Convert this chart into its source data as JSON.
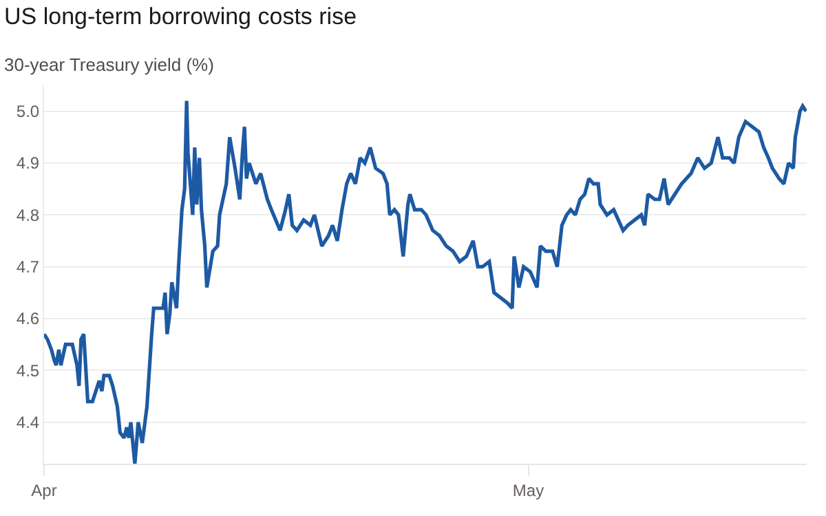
{
  "chart_data": {
    "type": "line",
    "title": "US long-term borrowing costs rise",
    "subtitle": "30-year Treasury yield (%)",
    "x": [
      "--04-01T00:00",
      "--04-01T05:00",
      "--04-01T11:00",
      "--04-01T15:00",
      "--04-01T18:00",
      "--04-01T22:00",
      "--04-02T01:00",
      "--04-02T08:00",
      "--04-02T18:00",
      "--04-03T01:00",
      "--04-03T04:00",
      "--04-03T07:00",
      "--04-03T11:00",
      "--04-03T17:00",
      "--04-04T00:00",
      "--04-04T10:00",
      "--04-04T14:00",
      "--04-04T17:00",
      "--04-05T01:00",
      "--04-05T06:00",
      "--04-05T13:00",
      "--04-05T17:00",
      "--04-05T23:00",
      "--04-06T03:00",
      "--04-06T06:00",
      "--04-06T09:00",
      "--04-06T15:00",
      "--04-06T20:00",
      "--04-07T02:00",
      "--04-07T06:00",
      "--04-07T09:00",
      "--04-07T12:00",
      "--04-07T16:00",
      "--04-07T19:00",
      "--04-08T02:00",
      "--04-08T09:00",
      "--04-08T12:00",
      "--04-08T15:00",
      "--04-08T19:00",
      "--04-08T22:00",
      "--04-09T05:00",
      "--04-09T08:00",
      "--04-09T13:00",
      "--04-09T17:00",
      "--04-09T20:00",
      "--04-09T22:00",
      "--04-10T05:00",
      "--04-10T08:00",
      "--04-10T11:00",
      "--04-10T15:00",
      "--04-10T18:00",
      "--04-10T23:00",
      "--04-11T02:00",
      "--04-11T11:00",
      "--04-11T18:00",
      "--04-11T21:00",
      "--04-12T07:00",
      "--04-12T12:00",
      "--04-12T20:00",
      "--04-13T03:00",
      "--04-13T07:00",
      "--04-13T10:00",
      "--04-13T13:00",
      "--04-13T17:00",
      "--04-14T03:00",
      "--04-14T10:00",
      "--04-14T20:00",
      "--04-15T02:00",
      "--04-15T15:00",
      "--04-15T23:00",
      "--04-16T04:00",
      "--04-16T09:00",
      "--04-16T16:00",
      "--04-17T02:00",
      "--04-17T12:00",
      "--04-17T18:00",
      "--04-18T05:00",
      "--04-18T15:00",
      "--04-18T21:00",
      "--04-19T04:00",
      "--04-19T11:00",
      "--04-19T18:00",
      "--04-20T00:00",
      "--04-20T07:00",
      "--04-20T14:00",
      "--04-20T21:00",
      "--04-21T05:00",
      "--04-21T13:00",
      "--04-22T00:00",
      "--04-22T06:00",
      "--04-22T10:00",
      "--04-22T17:00",
      "--04-22T23:00",
      "--04-23T06:00",
      "--04-23T13:00",
      "--04-23T16:00",
      "--04-23T23:00",
      "--04-24T09:00",
      "--04-24T16:00",
      "--04-25T02:00",
      "--04-25T12:00",
      "--04-25T22:00",
      "--04-26T08:00",
      "--04-26T18:00",
      "--04-27T04:00",
      "--04-27T14:00",
      "--04-27T21:00",
      "--04-28T04:00",
      "--04-28T14:00",
      "--04-28T21:00",
      "--04-29T07:00",
      "--04-29T17:00",
      "--04-30T00:00",
      "--04-30T03:00",
      "--04-30T10:00",
      "--04-30T17:00",
      "--05-01T03:00",
      "--05-01T13:00",
      "--05-01T18:00",
      "--05-02T02:00",
      "--05-02T12:00",
      "--05-02T19:00",
      "--05-03T02:00",
      "--05-03T09:00",
      "--05-03T15:00",
      "--05-03T22:00",
      "--05-04T05:00",
      "--05-04T12:00",
      "--05-04T18:00",
      "--05-05T01:00",
      "--05-05T08:00",
      "--05-05T11:00",
      "--05-05T21:00",
      "--05-06T07:00",
      "--05-06T21:00",
      "--05-07T04:00",
      "--05-07T14:00",
      "--05-08T00:00",
      "--05-08T05:00",
      "--05-08T10:00",
      "--05-08T20:00",
      "--05-09T03:00",
      "--05-09T10:00",
      "--05-09T16:00",
      "--05-10T02:00",
      "--05-10T12:00",
      "--05-11T02:00",
      "--05-11T12:00",
      "--05-11T22:00",
      "--05-12T08:00",
      "--05-12T18:00",
      "--05-13T01:00",
      "--05-13T11:00",
      "--05-13T18:00",
      "--05-14T01:00",
      "--05-14T11:00",
      "--05-14T21:00",
      "--05-15T07:00",
      "--05-15T14:00",
      "--05-15T21:00",
      "--05-16T03:00",
      "--05-16T13:00",
      "--05-16T20:00",
      "--05-17T03:00",
      "--05-17T10:00",
      "--05-17T13:00",
      "--05-17T20:00",
      "--05-18T00:00",
      "--05-18T05:00"
    ],
    "series": [
      {
        "color": "#1d5aa3",
        "values": [
          4.57,
          4.56,
          4.54,
          4.52,
          4.51,
          4.54,
          4.51,
          4.55,
          4.55,
          4.51,
          4.47,
          4.56,
          4.57,
          4.44,
          4.44,
          4.48,
          4.46,
          4.49,
          4.49,
          4.47,
          4.43,
          4.38,
          4.37,
          4.39,
          4.37,
          4.4,
          4.32,
          4.4,
          4.36,
          4.4,
          4.43,
          4.49,
          4.57,
          4.62,
          4.62,
          4.62,
          4.65,
          4.57,
          4.61,
          4.67,
          4.62,
          4.7,
          4.81,
          4.85,
          5.02,
          4.92,
          4.8,
          4.93,
          4.82,
          4.91,
          4.81,
          4.74,
          4.66,
          4.73,
          4.74,
          4.8,
          4.86,
          4.95,
          4.89,
          4.83,
          4.92,
          4.97,
          4.87,
          4.9,
          4.86,
          4.88,
          4.83,
          4.81,
          4.77,
          4.81,
          4.84,
          4.78,
          4.77,
          4.79,
          4.78,
          4.8,
          4.74,
          4.76,
          4.78,
          4.75,
          4.81,
          4.86,
          4.88,
          4.86,
          4.91,
          4.9,
          4.93,
          4.89,
          4.88,
          4.86,
          4.8,
          4.81,
          4.8,
          4.72,
          4.82,
          4.84,
          4.81,
          4.81,
          4.8,
          4.77,
          4.76,
          4.74,
          4.73,
          4.71,
          4.72,
          4.75,
          4.7,
          4.7,
          4.71,
          4.65,
          4.64,
          4.63,
          4.62,
          4.72,
          4.66,
          4.7,
          4.69,
          4.66,
          4.74,
          4.73,
          4.73,
          4.7,
          4.78,
          4.8,
          4.81,
          4.8,
          4.83,
          4.84,
          4.87,
          4.86,
          4.86,
          4.82,
          4.8,
          4.81,
          4.77,
          4.78,
          4.79,
          4.8,
          4.78,
          4.84,
          4.83,
          4.83,
          4.87,
          4.82,
          4.84,
          4.86,
          4.88,
          4.91,
          4.89,
          4.9,
          4.95,
          4.91,
          4.91,
          4.9,
          4.95,
          4.98,
          4.97,
          4.96,
          4.93,
          4.91,
          4.89,
          4.87,
          4.86,
          4.9,
          4.89,
          4.95,
          5.0,
          5.01,
          5.0
        ]
      }
    ],
    "xlim": [
      "--04-01",
      "--05-18T06:00"
    ],
    "xticks": [
      {
        "value": "--04-01",
        "label": "Apr"
      },
      {
        "value": "--05-01",
        "label": "May"
      }
    ],
    "ylim": [
      4.32,
      5.05
    ],
    "yticks": [
      4.4,
      4.5,
      4.6,
      4.7,
      4.8,
      4.9,
      {
        "value": 5.0,
        "label": "5.0"
      }
    ],
    "grid": "y",
    "marker": "none",
    "line_style": "solid"
  }
}
